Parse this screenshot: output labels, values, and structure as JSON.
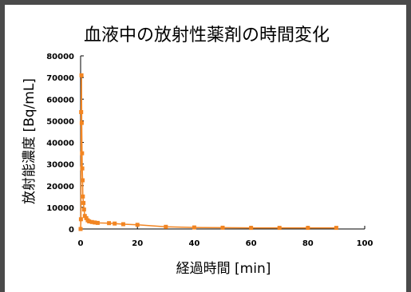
{
  "chart_data": {
    "type": "line",
    "title": "血液中の放射性薬剤の時間変化",
    "xlabel": "経過時間 [min]",
    "ylabel": "放射能濃度 [Bq/mL]",
    "xlim": [
      0,
      100
    ],
    "ylim": [
      0,
      80000
    ],
    "x_ticks": [
      "0",
      "20",
      "40",
      "60",
      "80",
      "100"
    ],
    "y_ticks": [
      "0",
      "10000",
      "20000",
      "30000",
      "40000",
      "50000",
      "60000",
      "70000",
      "80000"
    ],
    "grid": false,
    "legend": "none",
    "color": "#f28522",
    "series": [
      {
        "x": [
          0,
          0.1,
          0.2,
          0.3,
          0.4,
          0.5,
          0.6,
          0.7,
          0.8,
          1.0,
          1.2,
          1.5,
          2,
          2.5,
          3,
          4,
          5,
          6,
          10,
          12,
          15,
          20,
          30,
          40,
          50,
          60,
          70,
          80,
          90
        ],
        "y": [
          0,
          4500,
          54000,
          71000,
          49000,
          35000,
          28000,
          22500,
          15000,
          12000,
          9000,
          6000,
          5000,
          4000,
          3500,
          3200,
          3000,
          2800,
          2700,
          2500,
          2200,
          1900,
          1000,
          700,
          600,
          500,
          500,
          500,
          500
        ]
      }
    ]
  }
}
